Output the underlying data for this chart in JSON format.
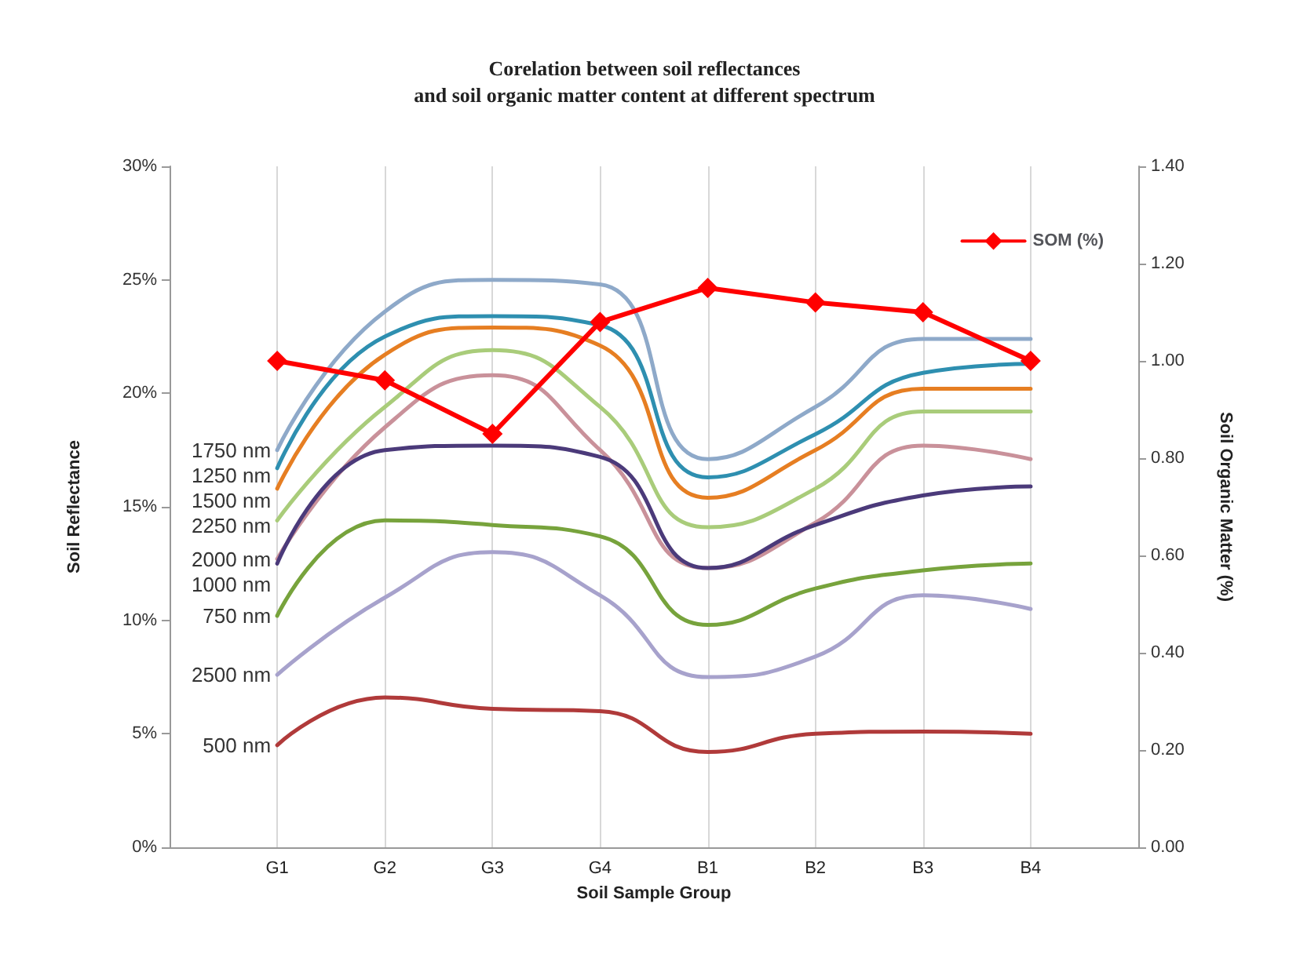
{
  "chart_data": {
    "type": "line",
    "title": "Corelation between soil reflectances\nand soil organic matter content at different spectrum",
    "xlabel": "Soil Sample Group",
    "ylabel": "Soil Reflectance",
    "y2label": "Soil Organic Matter (%)",
    "categories": [
      "G1",
      "G2",
      "G3",
      "G4",
      "B1",
      "B2",
      "B3",
      "B4"
    ],
    "ylim": [
      0,
      30
    ],
    "yticks": [
      {
        "value": 0,
        "label": "0%"
      },
      {
        "value": 5,
        "label": "5%"
      },
      {
        "value": 10,
        "label": "10%"
      },
      {
        "value": 15,
        "label": "15%"
      },
      {
        "value": 20,
        "label": "20%"
      },
      {
        "value": 25,
        "label": "25%"
      },
      {
        "value": 30,
        "label": "30%"
      }
    ],
    "y2lim": [
      0,
      1.4
    ],
    "y2ticks": [
      {
        "value": 0,
        "label": "0.00"
      },
      {
        "value": 0.2,
        "label": "0.20"
      },
      {
        "value": 0.4,
        "label": "0.40"
      },
      {
        "value": 0.6,
        "label": "0.60"
      },
      {
        "value": 0.8,
        "label": "0.80"
      },
      {
        "value": 1.0,
        "label": "1.00"
      },
      {
        "value": 1.2,
        "label": "1.20"
      },
      {
        "value": 1.4,
        "label": "1.40"
      }
    ],
    "grid": "x",
    "legend": "top right",
    "marker": "none",
    "line_style": "solid",
    "series": [
      {
        "name": "1750 nm",
        "color": "#8ea9c9",
        "values": [
          17.5,
          23.6,
          25.0,
          24.8,
          17.1,
          19.4,
          22.4,
          22.4
        ]
      },
      {
        "name": "1250 nm",
        "color": "#2e8fb0",
        "values": [
          16.7,
          22.5,
          23.4,
          23.0,
          16.3,
          18.2,
          20.9,
          21.3
        ]
      },
      {
        "name": "1500 nm",
        "color": "#e67e22",
        "values": [
          15.8,
          21.7,
          22.9,
          22.1,
          15.4,
          17.5,
          20.2,
          20.2
        ]
      },
      {
        "name": "2250 nm",
        "color": "#a9cc7a",
        "values": [
          14.4,
          19.4,
          21.9,
          19.4,
          14.1,
          15.8,
          19.2,
          19.2
        ]
      },
      {
        "name": "2000 nm",
        "color": "#c9919a",
        "values": [
          12.7,
          18.5,
          20.8,
          17.5,
          12.3,
          14.3,
          17.7,
          17.1
        ]
      },
      {
        "name": "1000 nm",
        "color": "#4b3a7a",
        "values": [
          12.5,
          17.5,
          17.7,
          17.2,
          12.3,
          14.2,
          15.5,
          15.9
        ]
      },
      {
        "name": "750 nm",
        "color": "#77a33c",
        "values": [
          10.2,
          14.4,
          14.2,
          13.7,
          9.8,
          11.4,
          12.2,
          12.5
        ]
      },
      {
        "name": "2500 nm",
        "color": "#a7a2cc",
        "values": [
          7.6,
          11.0,
          13.0,
          11.1,
          7.5,
          8.4,
          11.1,
          10.5
        ]
      },
      {
        "name": "500 nm",
        "color": "#b03a3a",
        "values": [
          4.5,
          6.6,
          6.1,
          6.0,
          4.2,
          5.0,
          5.1,
          5.0
        ]
      },
      {
        "name": "SOM (%)",
        "color": "#ff0000",
        "axis": "y2",
        "marker": "diamond",
        "values": [
          1.0,
          0.96,
          0.85,
          1.08,
          1.15,
          1.12,
          1.1,
          1.0
        ]
      }
    ]
  }
}
